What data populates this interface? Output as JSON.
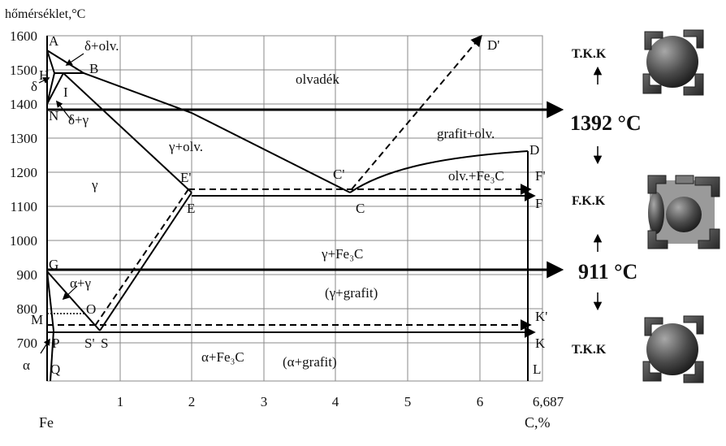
{
  "diagram": {
    "y_axis_label": "hőmérséklet,°C",
    "x_axis_left_label": "Fe",
    "x_axis_right_label": "C,%",
    "y_ticks": [
      "1600",
      "1500",
      "1400",
      "1300",
      "1200",
      "1100",
      "1000",
      "900",
      "800",
      "700"
    ],
    "x_ticks": [
      "1",
      "2",
      "3",
      "4",
      "5",
      "6",
      "6,687"
    ],
    "points": {
      "A": "A",
      "B": "B",
      "H": "H",
      "I": "I",
      "N": "N",
      "D": "D",
      "D_prime": "D'",
      "C": "C",
      "C_prime": "C'",
      "E": "E",
      "E_prime": "E'",
      "F": "F",
      "F_prime": "F'",
      "G": "G",
      "O": "O",
      "M": "M",
      "P": "P",
      "S": "S",
      "S_prime": "S'",
      "Q": "Q",
      "K": "K",
      "K_prime": "K'",
      "L": "L"
    },
    "regions": {
      "delta_liquid": "δ+olv.",
      "delta": "δ",
      "liquid": "olvadék",
      "delta_gamma": "δ+γ",
      "gamma_liquid": "γ+olv.",
      "graphite_liquid": "grafit+olv.",
      "liquid_cementite": "olv.+Fe₃C",
      "gamma": "γ",
      "gamma_cementite": "γ+Fe₃C",
      "gamma_graphite": "(γ+grafit)",
      "alpha_gamma": "α+γ",
      "alpha_cementite": "α+Fe₃C",
      "alpha_graphite": "(α+grafit)",
      "alpha": "α"
    }
  },
  "transitions": {
    "upper_temp": "1392 °C",
    "lower_temp": "911 °C"
  },
  "lattices": [
    {
      "label": "T.K.K"
    },
    {
      "label": "F.K.K"
    },
    {
      "label": "T.K.K"
    }
  ]
}
